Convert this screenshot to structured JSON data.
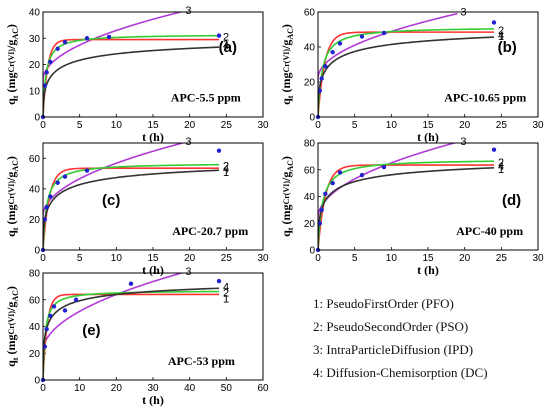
{
  "chart_data": [
    {
      "type": "line",
      "panel": "(a)",
      "annotation": "APC-5.5 ppm",
      "xlabel": "t (h)",
      "ylabel": "qt (mgCr(VI)/gAC)",
      "xlim": [
        0,
        30
      ],
      "ylim": [
        0,
        40
      ],
      "xticks": [
        0,
        5,
        10,
        15,
        20,
        25,
        30
      ],
      "yticks": [
        0,
        10,
        20,
        30,
        40
      ],
      "model_ends": [
        24,
        24,
        19,
        24
      ],
      "experimental": {
        "x": [
          0,
          0.25,
          0.5,
          1,
          2,
          3,
          6,
          9,
          24
        ],
        "y": [
          0,
          12,
          17,
          21,
          26,
          28.5,
          30,
          30.5,
          31
        ]
      },
      "series": [
        {
          "name": "1",
          "qe": 29.5,
          "k1": 1.6
        },
        {
          "name": "2",
          "qe": 31.5,
          "k2": 0.08
        },
        {
          "name": "3",
          "kid": 6.0,
          "c": 14.0
        },
        {
          "name": "4",
          "qe": 33,
          "k": 0.85
        }
      ]
    },
    {
      "type": "line",
      "panel": "(b)",
      "annotation": "APC-10.65 ppm",
      "xlabel": "t (h)",
      "ylabel": "qt (mgCr(VI)/gAC)",
      "xlim": [
        0,
        30
      ],
      "ylim": [
        0,
        60
      ],
      "xticks": [
        0,
        5,
        10,
        15,
        20,
        25,
        30
      ],
      "yticks": [
        0,
        20,
        40,
        60
      ],
      "model_ends": [
        24,
        24,
        19,
        24
      ],
      "experimental": {
        "x": [
          0,
          0.25,
          0.5,
          1,
          2,
          3,
          6,
          9,
          24
        ],
        "y": [
          0,
          15,
          22,
          29,
          37,
          42,
          46,
          48,
          54
        ]
      },
      "series": [
        {
          "name": "1",
          "qe": 48.5,
          "k1": 1.1
        },
        {
          "name": "2",
          "qe": 51.5,
          "k2": 0.035
        },
        {
          "name": "3",
          "kid": 8.5,
          "c": 22.0
        },
        {
          "name": "4",
          "qe": 56,
          "k": 0.9
        }
      ]
    },
    {
      "type": "line",
      "panel": "(c)",
      "annotation": "APC-20.7 ppm",
      "xlabel": "t (h)",
      "ylabel": "qt (mgCr(VI)/gAC)",
      "xlim": [
        0,
        30
      ],
      "ylim": [
        0,
        70
      ],
      "xticks": [
        0,
        5,
        10,
        15,
        20,
        25,
        30
      ],
      "yticks": [
        0,
        20,
        40,
        60
      ],
      "model_ends": [
        24,
        24,
        19,
        24
      ],
      "experimental": {
        "x": [
          0,
          0.25,
          0.5,
          1,
          2,
          3,
          6,
          24
        ],
        "y": [
          0,
          20,
          28,
          35,
          44,
          48,
          52,
          65
        ]
      },
      "series": [
        {
          "name": "1",
          "qe": 53.5,
          "k1": 1.2
        },
        {
          "name": "2",
          "qe": 57,
          "k2": 0.035
        },
        {
          "name": "3",
          "kid": 11.0,
          "c": 22.0
        },
        {
          "name": "4",
          "qe": 64,
          "k": 0.9
        }
      ]
    },
    {
      "type": "line",
      "panel": "(d)",
      "annotation": "APC-40 ppm",
      "xlabel": "t (h)",
      "ylabel": "qt (mgCr(VI)/gAC)",
      "xlim": [
        0,
        30
      ],
      "ylim": [
        0,
        80
      ],
      "xticks": [
        0,
        5,
        10,
        15,
        20,
        25,
        30
      ],
      "yticks": [
        0,
        20,
        40,
        60,
        80
      ],
      "model_ends": [
        24,
        24,
        19,
        24
      ],
      "experimental": {
        "x": [
          0,
          0.25,
          0.5,
          1,
          2,
          3,
          6,
          9,
          24
        ],
        "y": [
          0,
          20,
          30,
          42,
          50,
          58,
          56,
          62,
          75
        ]
      },
      "series": [
        {
          "name": "1",
          "qe": 63.5,
          "k1": 1.0
        },
        {
          "name": "2",
          "qe": 68,
          "k2": 0.025
        },
        {
          "name": "3",
          "kid": 13.0,
          "c": 24.0
        },
        {
          "name": "4",
          "qe": 74,
          "k": 1.0
        }
      ]
    },
    {
      "type": "line",
      "panel": "(e)",
      "annotation": "APC-53 ppm",
      "xlabel": "t (h)",
      "ylabel": "qt (mgCr(VI)/gAC)",
      "xlim": [
        0,
        60
      ],
      "ylim": [
        0,
        80
      ],
      "xticks": [
        0,
        10,
        20,
        30,
        40,
        50,
        60
      ],
      "yticks": [
        0,
        20,
        40,
        60,
        80
      ],
      "model_ends": [
        48,
        48,
        38,
        48
      ],
      "experimental": {
        "x": [
          0,
          0.5,
          1,
          2,
          3,
          6,
          9,
          24,
          48
        ],
        "y": [
          0,
          25,
          38,
          48,
          55,
          52,
          60,
          72,
          74
        ]
      },
      "series": [
        {
          "name": "1",
          "qe": 64,
          "k1": 0.9
        },
        {
          "name": "2",
          "qe": 67,
          "k2": 0.025
        },
        {
          "name": "3",
          "kid": 9.6,
          "c": 21.0
        },
        {
          "name": "4",
          "qe": 79,
          "k": 0.95
        }
      ]
    }
  ],
  "legend": [
    "1: PseudoFirstOrder (PFO)",
    "2: PseudoSecondOrder (PSO)",
    "3: IntraParticleDiffusion (IPD)",
    "4: Diffusion-Chemisorption (DC)"
  ],
  "colors": {
    "1": "#ff3333",
    "2": "#33cc33",
    "3": "#b23ad6",
    "4": "#333333",
    "points": "#2222cc"
  }
}
